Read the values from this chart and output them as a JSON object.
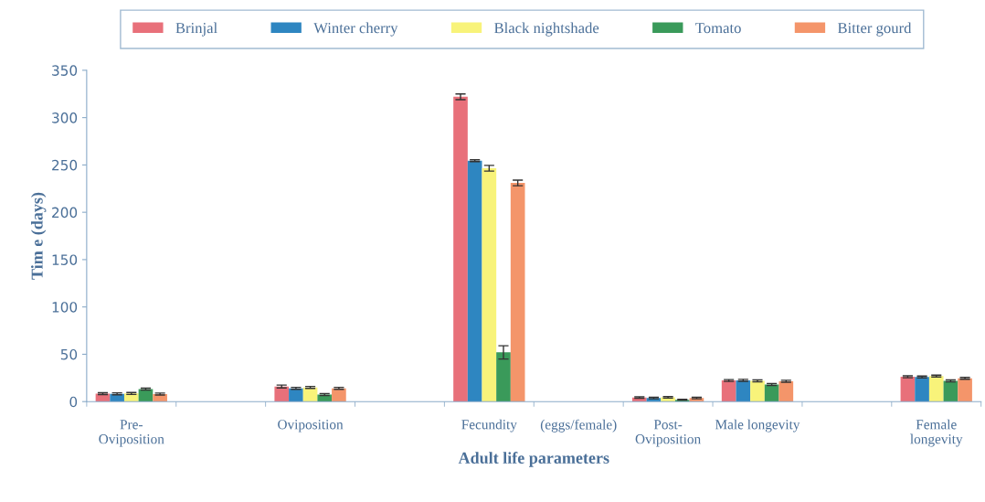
{
  "chart_data": {
    "type": "bar",
    "xlabel": "Adult life parameters",
    "ylabel": "Tim e (days)",
    "categories": [
      "Pre-\nOviposition",
      null,
      "Oviposition",
      null,
      "Fecundity",
      "(eggs/female)",
      "Post-\nOviposition",
      "Male longevity",
      null,
      "Female\nlongevity"
    ],
    "series": [
      {
        "name": "Brinjal",
        "color": "#e8707a",
        "values": [
          8.4,
          null,
          16,
          null,
          322,
          null,
          4.2,
          22.3,
          null,
          26.2
        ],
        "errors": [
          1,
          null,
          1.5,
          null,
          3,
          null,
          0.8,
          1,
          null,
          1
        ]
      },
      {
        "name": "Winter cherry",
        "color": "#2e86c1",
        "values": [
          8.2,
          null,
          14,
          null,
          254.5,
          null,
          3.8,
          22.5,
          null,
          26
        ],
        "errors": [
          1,
          null,
          1,
          null,
          1,
          null,
          0.8,
          1,
          null,
          1
        ]
      },
      {
        "name": "Black nightshade",
        "color": "#f8f37a",
        "values": [
          8.6,
          null,
          15,
          null,
          246.5,
          null,
          4.5,
          22,
          null,
          27
        ],
        "errors": [
          1,
          null,
          1,
          null,
          3,
          null,
          0.8,
          1,
          null,
          1
        ]
      },
      {
        "name": "Tomato",
        "color": "#3a9a5a",
        "values": [
          13.2,
          null,
          7.5,
          null,
          52,
          null,
          2,
          18,
          null,
          22
        ],
        "errors": [
          1,
          null,
          1,
          null,
          7,
          null,
          0.5,
          1,
          null,
          1
        ]
      },
      {
        "name": "Bitter gourd",
        "color": "#f4956a",
        "values": [
          8,
          null,
          14,
          null,
          231,
          null,
          3.8,
          21.5,
          null,
          24.6
        ],
        "errors": [
          1,
          null,
          1,
          null,
          3,
          null,
          0.8,
          1,
          null,
          1
        ]
      }
    ],
    "ylim": [
      0,
      350
    ],
    "yticks": [
      0,
      50,
      100,
      150,
      200,
      250,
      300,
      350
    ],
    "grid": false,
    "legend": "top"
  }
}
